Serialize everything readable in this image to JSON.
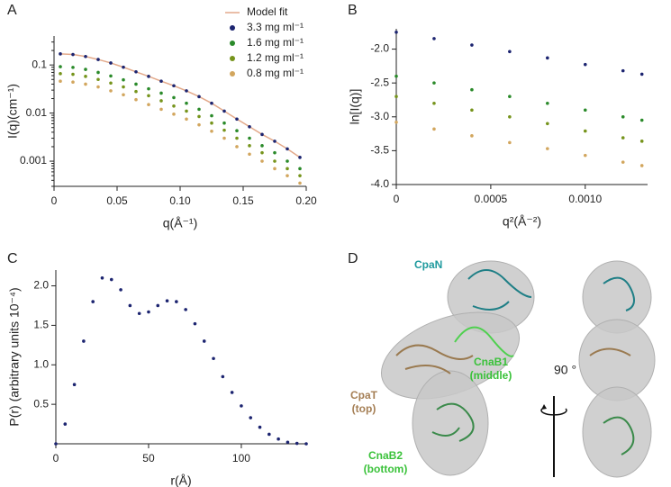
{
  "chart_data": [
    {
      "type": "scatter",
      "panel": "A",
      "x_label": "q(Å⁻¹)",
      "y_label": "I(q)(cm⁻¹)",
      "log_y": true,
      "xlim": [
        0,
        0.2
      ],
      "ylim": [
        0.0003,
        0.4
      ],
      "xticks": [
        0,
        0.05,
        {
          "value": 0.1,
          "label": "0.10"
        },
        0.15,
        {
          "value": 0.2,
          "label": "0.20"
        }
      ],
      "yticks": [
        0.001,
        0.01,
        0.1
      ],
      "x": [
        0.005,
        0.015,
        0.025,
        0.035,
        0.045,
        0.055,
        0.065,
        0.075,
        0.085,
        0.095,
        0.105,
        0.115,
        0.125,
        0.135,
        0.145,
        0.155,
        0.165,
        0.175,
        0.185,
        0.195
      ],
      "series": [
        {
          "name": "Model fit",
          "color": "#e3a98a",
          "mode": "line",
          "values": [
            0.17,
            0.165,
            0.15,
            0.13,
            0.11,
            0.09,
            0.072,
            0.058,
            0.046,
            0.037,
            0.029,
            0.022,
            0.016,
            0.011,
            0.0075,
            0.0052,
            0.0036,
            0.0026,
            0.0018,
            0.0012
          ]
        },
        {
          "name": "3.3 mg ml⁻¹",
          "color": "#1c2470",
          "values": [
            0.17,
            0.165,
            0.15,
            0.13,
            0.11,
            0.09,
            0.072,
            0.058,
            0.046,
            0.037,
            0.029,
            0.022,
            0.016,
            0.011,
            0.0075,
            0.0052,
            0.0036,
            0.0026,
            0.0018,
            0.0012
          ]
        },
        {
          "name": "1.6 mg ml⁻¹",
          "color": "#2a8a2a",
          "values": [
            0.092,
            0.089,
            0.081,
            0.07,
            0.059,
            0.049,
            0.04,
            0.032,
            0.026,
            0.021,
            0.016,
            0.012,
            0.0088,
            0.0062,
            0.0043,
            0.003,
            0.0021,
            0.0015,
            0.001,
            0.0007
          ]
        },
        {
          "name": "1.2 mg ml⁻¹",
          "color": "#76941c",
          "values": [
            0.066,
            0.064,
            0.058,
            0.05,
            0.042,
            0.035,
            0.028,
            0.023,
            0.018,
            0.014,
            0.011,
            0.0085,
            0.0062,
            0.0044,
            0.003,
            0.0021,
            0.0015,
            0.001,
            0.0007,
            0.0005
          ]
        },
        {
          "name": "0.8 mg ml⁻¹",
          "color": "#d2a65e",
          "values": [
            0.046,
            0.044,
            0.04,
            0.035,
            0.029,
            0.024,
            0.019,
            0.015,
            0.012,
            0.0095,
            0.0075,
            0.0057,
            0.0042,
            0.003,
            0.002,
            0.0014,
            0.001,
            0.0007,
            0.0005,
            0.00035
          ]
        }
      ]
    },
    {
      "type": "scatter",
      "panel": "B",
      "x_label": "q²(Å⁻²)",
      "y_label": "ln[I(q)]",
      "xlim": [
        0,
        0.00133
      ],
      "ylim": [
        -4.0,
        -1.7
      ],
      "xticks": [
        0,
        0.0005,
        {
          "value": 0.001,
          "label": "0.0010"
        }
      ],
      "yticks": [
        {
          "value": -2,
          "label": "-2.0"
        },
        -2.5,
        {
          "value": -3,
          "label": "-3.0"
        },
        -3.5,
        {
          "value": -4,
          "label": "-4.0"
        }
      ],
      "x": [
        0,
        0.0002,
        0.0004,
        0.0006,
        0.0008,
        0.001,
        0.0012,
        0.0013
      ],
      "series": [
        {
          "name": "3.3 mg ml⁻¹",
          "color": "#1c2470",
          "values": [
            -1.75,
            -1.845,
            -1.94,
            -2.036,
            -2.13,
            -2.227,
            -2.32,
            -2.37
          ]
        },
        {
          "name": "1.6 mg ml⁻¹",
          "color": "#2a8a2a",
          "values": [
            -2.4,
            -2.5,
            -2.6,
            -2.7,
            -2.8,
            -2.9,
            -3.0,
            -3.05
          ]
        },
        {
          "name": "1.2 mg ml⁻¹",
          "color": "#76941c",
          "values": [
            -2.7,
            -2.8,
            -2.9,
            -3.0,
            -3.1,
            -3.21,
            -3.31,
            -3.36
          ]
        },
        {
          "name": "0.8 mg ml⁻¹",
          "color": "#d2a65e",
          "values": [
            -3.08,
            -3.18,
            -3.28,
            -3.38,
            -3.47,
            -3.57,
            -3.67,
            -3.72
          ]
        }
      ]
    },
    {
      "type": "scatter",
      "panel": "C",
      "x_label": "r(Å)",
      "y_label": "P(r) (arbitrary units 10⁻⁴)",
      "xlim": [
        0,
        135
      ],
      "ylim": [
        0,
        2.2
      ],
      "xticks": [
        0,
        50,
        100
      ],
      "yticks": [
        0.5,
        {
          "value": 1,
          "label": "1.0"
        },
        1.5,
        {
          "value": 2,
          "label": "2.0"
        }
      ],
      "x": [
        0,
        5,
        10,
        15,
        20,
        25,
        30,
        35,
        40,
        45,
        50,
        55,
        60,
        65,
        70,
        75,
        80,
        85,
        90,
        95,
        100,
        105,
        110,
        115,
        120,
        125,
        130,
        135
      ],
      "series": [
        {
          "color": "#1c2470",
          "values": [
            0,
            0.25,
            0.75,
            1.3,
            1.8,
            2.1,
            2.08,
            1.95,
            1.75,
            1.65,
            1.67,
            1.75,
            1.81,
            1.8,
            1.7,
            1.52,
            1.3,
            1.08,
            0.85,
            0.65,
            0.48,
            0.33,
            0.21,
            0.12,
            0.06,
            0.02,
            0.005,
            0
          ]
        }
      ]
    }
  ],
  "panel_d": {
    "panel": "D",
    "cpan": "CpaN",
    "cnab1": "CnaB1\n(middle)",
    "cpat": "CpaT\n(top)",
    "cnab2": "CnaB2\n(bottom)",
    "rotation": "90 °"
  }
}
